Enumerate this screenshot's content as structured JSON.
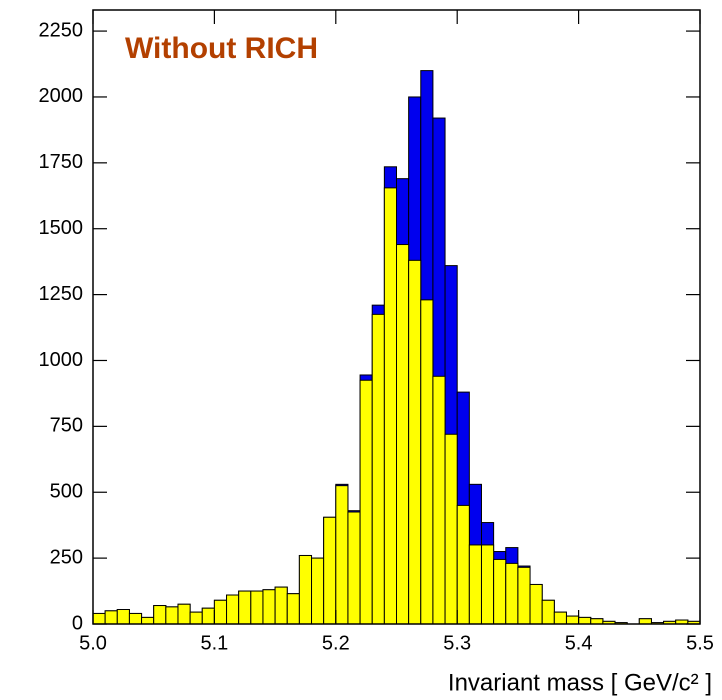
{
  "chart_data": {
    "type": "histogram",
    "annotation": "Without RICH",
    "annotation_color": "#b34000",
    "xlabel": "Invariant mass  [ GeV/c² ]",
    "bins": [
      5.0,
      5.01,
      5.02,
      5.03,
      5.04,
      5.05,
      5.06,
      5.07,
      5.08,
      5.09,
      5.1,
      5.11,
      5.12,
      5.13,
      5.14,
      5.15,
      5.16,
      5.17,
      5.18,
      5.19,
      5.2,
      5.21,
      5.22,
      5.23,
      5.24,
      5.25,
      5.26,
      5.27,
      5.28,
      5.29,
      5.3,
      5.31,
      5.32,
      5.33,
      5.34,
      5.35,
      5.36,
      5.37,
      5.38,
      5.39,
      5.4,
      5.41,
      5.42,
      5.43,
      5.44,
      5.45,
      5.46,
      5.47,
      5.48,
      5.49,
      5.5
    ],
    "series": [
      {
        "color": "#0000ee",
        "values": [
          40,
          50,
          55,
          40,
          25,
          70,
          65,
          75,
          45,
          60,
          90,
          110,
          125,
          125,
          130,
          140,
          115,
          260,
          250,
          405,
          530,
          430,
          945,
          1210,
          1735,
          1690,
          2000,
          2100,
          1920,
          1360,
          880,
          530,
          385,
          275,
          290,
          220,
          150,
          90,
          45,
          30,
          25,
          20,
          10,
          5,
          0,
          20,
          5,
          10,
          15,
          10
        ]
      },
      {
        "color": "#ffff00",
        "values": [
          40,
          50,
          55,
          40,
          25,
          70,
          65,
          75,
          45,
          60,
          90,
          110,
          125,
          125,
          130,
          140,
          115,
          260,
          250,
          405,
          525,
          425,
          925,
          1175,
          1655,
          1440,
          1380,
          1230,
          940,
          720,
          450,
          300,
          300,
          245,
          230,
          215,
          150,
          90,
          45,
          30,
          25,
          20,
          10,
          5,
          0,
          20,
          5,
          10,
          15,
          10
        ]
      }
    ],
    "xlim": [
      5.0,
      5.5
    ],
    "ylim": [
      0,
      2330
    ],
    "xticks": [
      {
        "value": 5.0,
        "label": "5.0"
      },
      5.1,
      5.2,
      5.3,
      5.4,
      5.5
    ],
    "yticks": [
      0,
      250,
      500,
      750,
      1000,
      1250,
      1500,
      1750,
      2000,
      2250
    ]
  }
}
